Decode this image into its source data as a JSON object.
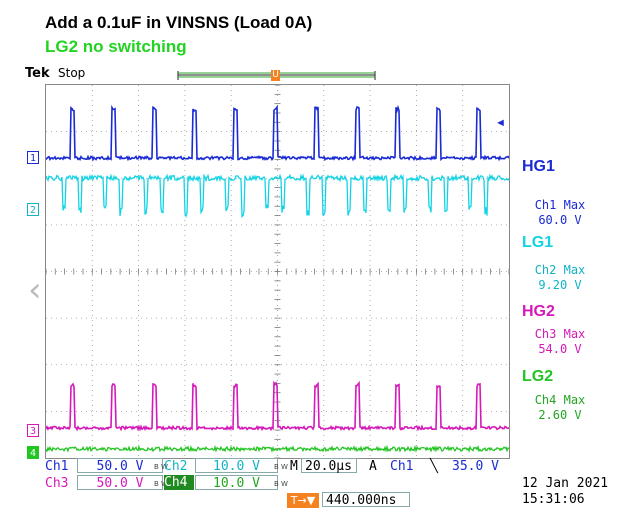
{
  "header": {
    "title": "Add a 0.1uF in VINSNS (Load 0A)",
    "subtitle": "LG2 no switching",
    "brand": "Tek",
    "status": "Stop"
  },
  "channels": [
    {
      "marker": "1",
      "color": "#1a2bd4",
      "name": "HG1",
      "meas_label": "Ch1 Max",
      "meas_value": "60.0 V"
    },
    {
      "marker": "2",
      "color": "#12d3e6",
      "name": "LG1",
      "meas_label": "Ch2 Max",
      "meas_value": "9.20 V"
    },
    {
      "marker": "3",
      "color": "#d619b9",
      "name": "HG2",
      "meas_label": "Ch3 Max",
      "meas_value": "54.0 V"
    },
    {
      "marker": "4",
      "color": "#22c522",
      "name": "LG2",
      "meas_label": "Ch4 Max",
      "meas_value": "2.60 V"
    }
  ],
  "settings": {
    "ch1_label": "Ch1",
    "ch1_scale": "50.0 V",
    "ch2_label": "Ch2",
    "ch2_scale": "10.0 V",
    "ch3_label": "Ch3",
    "ch3_scale": "50.0 V",
    "ch4_label": "Ch4",
    "ch4_scale": "10.0 V",
    "bw": "B W",
    "time_label": "M",
    "time_scale": "20.0µs",
    "mode": "A",
    "trig_source": "Ch1",
    "trig_slope": "╲",
    "trig_level": "35.0 V",
    "trig_pos_label": "T→▼",
    "trig_pos": "440.000ns"
  },
  "timestamp": {
    "date": "12 Jan  2021",
    "time": "15:31:06"
  },
  "icons": {
    "trigger_marker": "T",
    "record_marker": "U",
    "left_nav": "‹",
    "trigger_level_arrow": "◄"
  }
}
